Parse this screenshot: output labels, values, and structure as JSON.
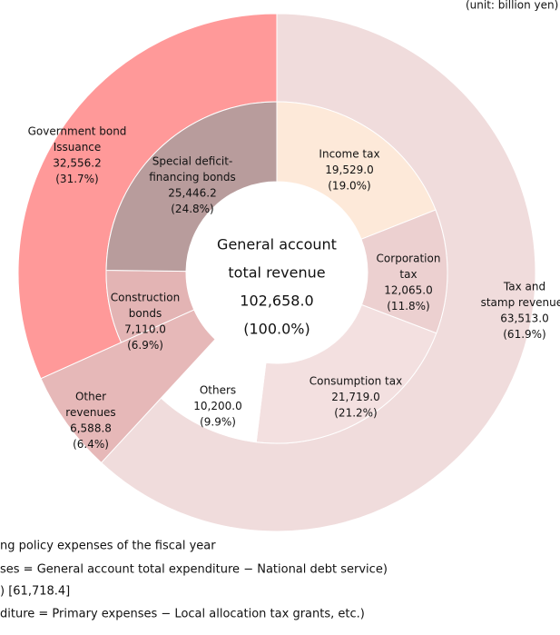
{
  "chart_data": {
    "type": "sunburst",
    "unit_note": "(unit: billion yen)",
    "center": {
      "lines": [
        "General account",
        "total revenue"
      ],
      "value": 102658.0,
      "value_label": "102,658.0",
      "percent_label": "(100.0%)"
    },
    "slices": [
      {
        "lines": [
          "Tax and",
          "stamp revenues"
        ],
        "value": 63513.0,
        "value_label": "63,513.0",
        "percent_label": "(61.9%)",
        "color": "#f0dcdc",
        "children": [
          {
            "lines": [
              "Income tax"
            ],
            "value": 19529.0,
            "value_label": "19,529.0",
            "percent_label": "(19.0%)",
            "color": "#fde9d9"
          },
          {
            "lines": [
              "Corporation",
              "tax"
            ],
            "value": 12065.0,
            "value_label": "12,065.0",
            "percent_label": "(11.8%)",
            "color": "#ecd0d0"
          },
          {
            "lines": [
              "Consumption tax"
            ],
            "value": 21719.0,
            "value_label": "21,719.0",
            "percent_label": "(21.2%)",
            "color": "#f3e0e0"
          },
          {
            "lines": [
              "Others"
            ],
            "value": 10200.0,
            "value_label": "10,200.0",
            "percent_label": "(9.9%)",
            "color": "#ffffff"
          }
        ]
      },
      {
        "lines": [
          "Other",
          "revenues"
        ],
        "value": 6588.8,
        "value_label": "6,588.8",
        "percent_label": "(6.4%)",
        "color": "#e6b8b8",
        "children": []
      },
      {
        "lines": [
          "Government bond",
          "Issuance"
        ],
        "value": 32556.2,
        "value_label": "32,556.2",
        "percent_label": "(31.7%)",
        "color": "#ff9999",
        "children": [
          {
            "lines": [
              "Construction",
              "bonds"
            ],
            "value": 7110.0,
            "value_label": "7,110.0",
            "percent_label": "(6.9%)",
            "color": "#e3b4b4"
          },
          {
            "lines": [
              "Special deficit-",
              "financing bonds"
            ],
            "value": 25446.2,
            "value_label": "25,446.2",
            "percent_label": "(24.8%)",
            "color": "#b89c9c"
          }
        ]
      }
    ],
    "footnotes": [
      "ng policy expenses of the fiscal year",
      "ses = General account total expenditure − National debt service)",
      ") [61,718.4]",
      "diture = Primary expenses − Local allocation tax grants, etc.)"
    ]
  }
}
